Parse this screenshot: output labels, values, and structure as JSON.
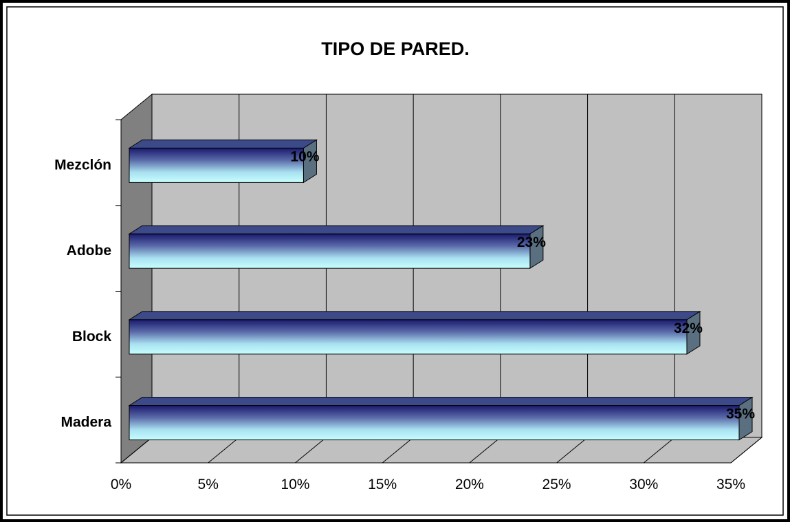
{
  "chart_data": {
    "type": "bar",
    "orientation": "horizontal",
    "title": "TIPO DE PARED.",
    "categories": [
      "Mezclón",
      "Adobe",
      "Block",
      "Madera"
    ],
    "values": [
      10,
      23,
      32,
      35
    ],
    "value_labels": [
      "10%",
      "23%",
      "32%",
      "35%"
    ],
    "xlim": [
      0,
      35
    ],
    "xticks": [
      0,
      5,
      10,
      15,
      20,
      25,
      30,
      35
    ],
    "xtick_labels": [
      "0%",
      "5%",
      "10%",
      "15%",
      "20%",
      "25%",
      "30%",
      "35%"
    ],
    "grid": true,
    "legend": "none",
    "style": "3d",
    "colors": {
      "bar_top": "#1a1a6e",
      "bar_bottom": "#c8ffff",
      "wall": "#c0c0c0",
      "side_wall": "#808080",
      "grid": "#000000"
    }
  }
}
